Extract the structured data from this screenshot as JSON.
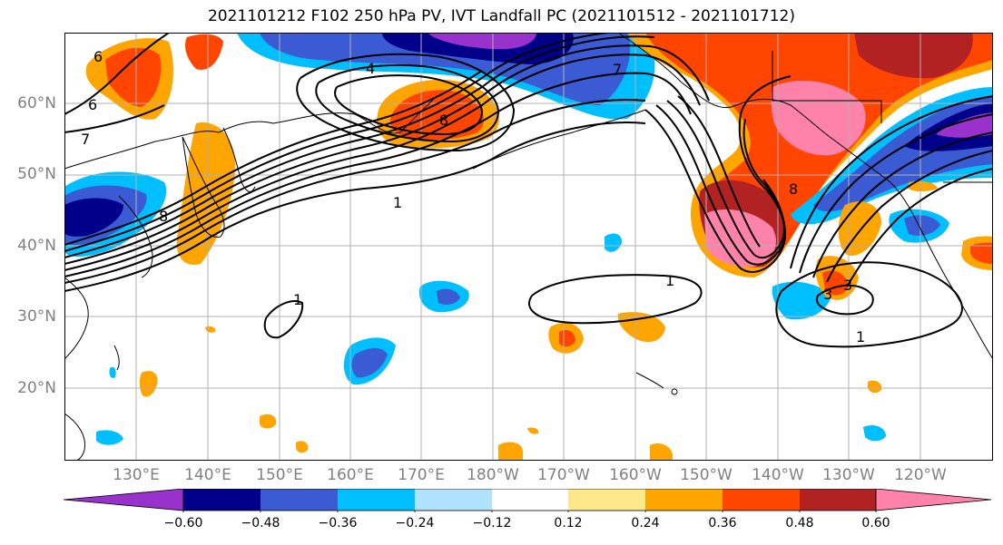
{
  "title": "2021101212 F102 250 hPa PV, IVT Landfall PC (2021101512 - 2021101712)",
  "map": {
    "lat_labels": [
      "60°N",
      "50°N",
      "40°N",
      "30°N",
      "20°N"
    ],
    "lon_labels": [
      "130°E",
      "140°E",
      "150°E",
      "160°E",
      "170°E",
      "180°W",
      "170°W",
      "160°W",
      "150°W",
      "140°W",
      "130°W",
      "120°W"
    ],
    "contour_labels": [
      "6",
      "6",
      "7",
      "4",
      "8",
      "1",
      "1",
      "1",
      "1",
      "7",
      "3",
      "8",
      "8",
      "3"
    ]
  },
  "colorbar": {
    "ticks": [
      "−0.60",
      "−0.48",
      "−0.36",
      "−0.24",
      "−0.12",
      "0.12",
      "0.24",
      "0.36",
      "0.48",
      "0.60"
    ],
    "colors": [
      "#9932cc",
      "#00008b",
      "#3b5bd4",
      "#00bfff",
      "#b0e2ff",
      "#ffffff",
      "#ffe88a",
      "#ffa500",
      "#ff4500",
      "#b22222",
      "#ff82ab"
    ]
  },
  "colors": {
    "lat_lon_label": "#808080",
    "gridline": "#b0b0b0",
    "contour": "#000000"
  }
}
